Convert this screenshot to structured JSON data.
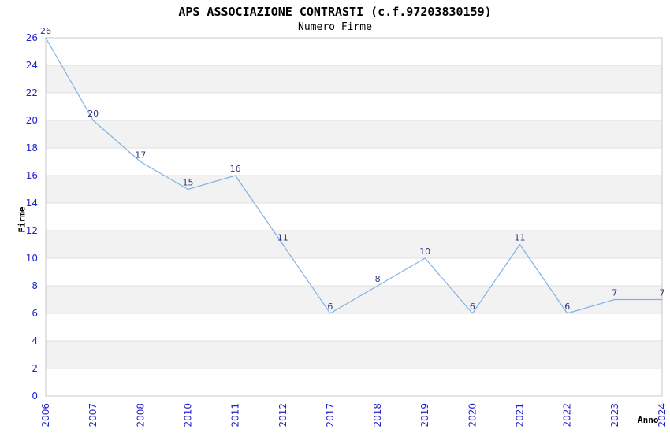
{
  "chart_data": {
    "type": "line",
    "title": "APS ASSOCIAZIONE CONTRASTI (c.f.97203830159)",
    "subtitle": "Numero Firme",
    "xlabel": "Anno",
    "ylabel": "Firme",
    "categories": [
      "2006",
      "2007",
      "2008",
      "2010",
      "2011",
      "2012",
      "2017",
      "2018",
      "2019",
      "2020",
      "2021",
      "2022",
      "2023",
      "2024"
    ],
    "values": [
      26,
      20,
      17,
      15,
      16,
      11,
      6,
      8,
      10,
      6,
      11,
      6,
      7,
      7
    ],
    "point_labels_shown": true,
    "ylim": [
      0,
      26
    ],
    "ytick_step": 2,
    "yticks": [
      0,
      2,
      4,
      6,
      8,
      10,
      12,
      14,
      16,
      18,
      20,
      22,
      24,
      26
    ],
    "grid": "horizontal-only",
    "band_stripes": "alternating 2-unit horizontal bands",
    "legend": "none",
    "x_tick_rotation_deg": -90,
    "colors": {
      "line": "#82b1e3",
      "value_label": "#333380",
      "tick_label": "#2323cc",
      "stripe": "#f2f2f2",
      "gridline": "#e0e0e0",
      "plot_border": "#c8c8c8",
      "title": "#000000",
      "background": "#ffffff"
    }
  }
}
